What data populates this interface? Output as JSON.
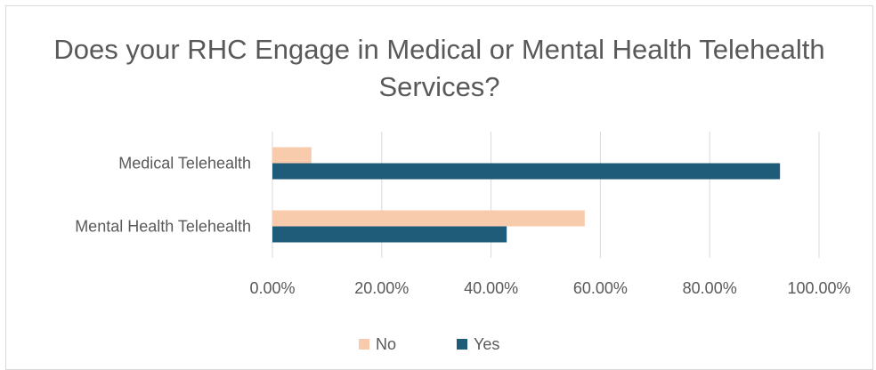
{
  "chart_data": {
    "type": "bar",
    "orientation": "horizontal",
    "title": "Does your RHC Engage in Medical or Mental Health Telehealth Services?",
    "categories": [
      "Medical Telehealth",
      "Mental Health Telehealth"
    ],
    "series": [
      {
        "name": "No",
        "color": "#f8cbad",
        "values": [
          7.14,
          57.14
        ]
      },
      {
        "name": "Yes",
        "color": "#1f5c7a",
        "values": [
          92.86,
          42.86
        ]
      }
    ],
    "x_ticks": [
      "0.00%",
      "20.00%",
      "40.00%",
      "60.00%",
      "80.00%",
      "100.00%"
    ],
    "xlim": [
      0,
      100
    ],
    "grid": true,
    "legend": "bottom"
  }
}
